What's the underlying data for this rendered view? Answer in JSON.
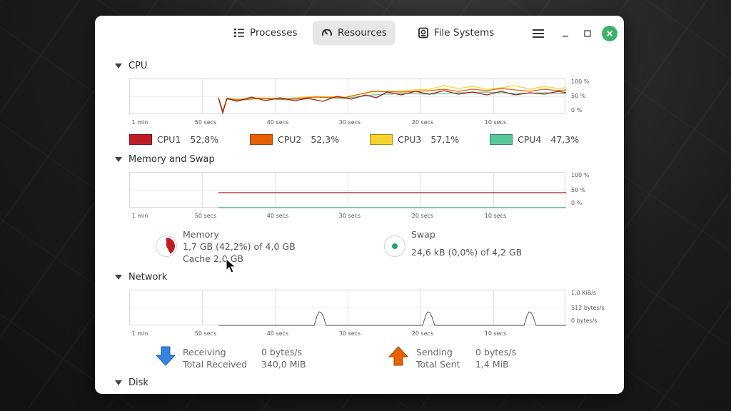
{
  "tabs": [
    {
      "label": "Processes",
      "icon": "list-icon",
      "active": false
    },
    {
      "label": "Resources",
      "icon": "gauge-icon",
      "active": true
    },
    {
      "label": "File Systems",
      "icon": "disk-icon",
      "active": false
    }
  ],
  "sections": {
    "cpu": "CPU",
    "memory": "Memory and Swap",
    "network": "Network",
    "disk": "Disk"
  },
  "x_axis": [
    "1 min",
    "50 secs",
    "40 secs",
    "30 secs",
    "20 secs",
    "10 secs"
  ],
  "pct_axis": [
    "100 %",
    "50 %",
    "0 %"
  ],
  "net_axis": [
    "1,0 KiB/s",
    "512 bytes/s",
    "0 bytes/s"
  ],
  "cpu": {
    "legend": [
      {
        "name": "CPU1",
        "value": "52,8%",
        "color": "#c01c28"
      },
      {
        "name": "CPU2",
        "value": "52,3%",
        "color": "#e66100"
      },
      {
        "name": "CPU3",
        "value": "57,1%",
        "color": "#f6d32d"
      },
      {
        "name": "CPU4",
        "value": "47,3%",
        "color": "#57c99a"
      }
    ]
  },
  "memory": {
    "label": "Memory",
    "usage": "1,7 GB (42,2%) of 4,0 GB",
    "cache": "Cache 2,0 GB",
    "fraction": 0.422,
    "color": "#c01c28"
  },
  "swap": {
    "label": "Swap",
    "usage": "24,6 kB (0,0%) of 4,2 GB",
    "color": "#26a269"
  },
  "network": {
    "receiving_label": "Receiving",
    "receiving_value": "0 bytes/s",
    "total_received_label": "Total Received",
    "total_received_value": "340,0 MiB",
    "sending_label": "Sending",
    "sending_value": "0 bytes/s",
    "total_sent_label": "Total Sent",
    "total_sent_value": "1,4 MiB",
    "receive_color": "#3584e4",
    "send_color": "#e66100"
  }
}
